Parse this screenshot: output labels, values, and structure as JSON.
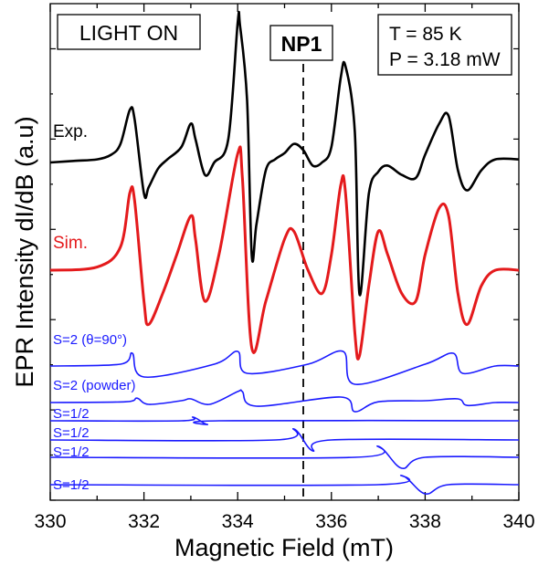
{
  "chart_data": {
    "type": "line",
    "xlabel": "Magnetic Field  (mT)",
    "ylabel": "EPR  Intensity  dI/dB (a.u)",
    "xlim": [
      330,
      340
    ],
    "x_ticks": [
      "330",
      "332",
      "334",
      "336",
      "338",
      "340"
    ],
    "y_ticks_numeric": false,
    "grid": false,
    "legend": "none",
    "annotations": {
      "light": "LIGHT ON",
      "sample": "NP1",
      "temperature": "T = 85 K",
      "power": "P = 3.18 mW"
    },
    "marker_line_x": 335.4,
    "series": [
      {
        "name": "Exp.",
        "color": "#000000",
        "x": [
          330.0,
          330.5,
          331.0,
          331.3,
          331.5,
          331.7,
          331.8,
          332.0,
          332.1,
          332.3,
          332.5,
          332.8,
          333.0,
          333.1,
          333.3,
          333.5,
          333.8,
          334.0,
          334.05,
          334.2,
          334.3,
          334.4,
          334.6,
          334.8,
          335.0,
          335.2,
          335.4,
          335.6,
          335.8,
          336.0,
          336.2,
          336.3,
          336.5,
          336.6,
          336.8,
          337.0,
          337.2,
          337.5,
          337.8,
          338.0,
          338.3,
          338.5,
          338.7,
          338.9,
          339.2,
          339.5,
          340.0
        ],
        "y": [
          0.0,
          0.01,
          0.02,
          0.05,
          0.12,
          0.34,
          0.28,
          -0.2,
          -0.16,
          -0.04,
          0.02,
          0.1,
          0.25,
          0.15,
          -0.08,
          0.0,
          0.15,
          0.9,
          0.88,
          0.4,
          -0.6,
          -0.4,
          -0.05,
          0.02,
          0.06,
          0.12,
          0.08,
          -0.02,
          0.0,
          0.1,
          0.55,
          0.62,
          0.2,
          -0.85,
          -0.2,
          -0.06,
          -0.02,
          -0.08,
          -0.1,
          0.05,
          0.25,
          0.3,
          -0.05,
          -0.18,
          -0.05,
          0.02,
          0.02
        ]
      },
      {
        "name": "Sim.",
        "color": "#e41a1c",
        "x": [
          330.0,
          331.0,
          331.5,
          331.7,
          331.8,
          332.0,
          332.1,
          332.4,
          332.7,
          333.0,
          333.1,
          333.3,
          333.6,
          334.0,
          334.1,
          334.3,
          334.6,
          335.0,
          335.2,
          335.5,
          335.8,
          336.0,
          336.2,
          336.3,
          336.5,
          336.6,
          336.8,
          337.0,
          337.2,
          337.5,
          337.8,
          338.0,
          338.3,
          338.5,
          338.7,
          338.9,
          339.2,
          339.5,
          340.0
        ],
        "y": [
          0.0,
          0.02,
          0.15,
          0.5,
          0.45,
          -0.2,
          -0.35,
          -0.15,
          0.1,
          0.35,
          0.2,
          -0.2,
          0.1,
          0.75,
          0.6,
          -0.5,
          -0.2,
          0.2,
          0.25,
          0.0,
          -0.15,
          0.1,
          0.55,
          0.5,
          -0.4,
          -0.55,
          -0.1,
          0.25,
          0.1,
          -0.15,
          -0.2,
          0.1,
          0.4,
          0.35,
          -0.15,
          -0.35,
          -0.1,
          0.0,
          0.0
        ]
      },
      {
        "name": "S=2 (θ=90°)",
        "color": "#1a1aff",
        "x": [
          330.0,
          331.5,
          331.75,
          332.0,
          333.5,
          334.0,
          334.2,
          335.5,
          336.25,
          336.5,
          338.0,
          338.6,
          338.8,
          339.5,
          340.0
        ],
        "y": [
          0.0,
          0.05,
          0.35,
          -0.3,
          0.05,
          0.4,
          -0.2,
          0.05,
          0.4,
          -0.5,
          0.05,
          0.35,
          -0.2,
          0.0,
          0.0
        ]
      },
      {
        "name": "S=2 (powder)",
        "color": "#1a1aff",
        "x": [
          330.0,
          331.6,
          331.85,
          332.1,
          332.8,
          333.0,
          333.4,
          334.0,
          334.1,
          334.4,
          336.2,
          336.5,
          337.0,
          338.0,
          338.7,
          338.9,
          339.5,
          340.0
        ],
        "y": [
          0.0,
          0.02,
          0.12,
          -0.05,
          0.05,
          0.1,
          -0.05,
          0.3,
          0.3,
          -0.1,
          0.15,
          -0.25,
          0.02,
          0.05,
          0.1,
          -0.08,
          0.0,
          0.0
        ]
      },
      {
        "name": "S=1/2",
        "color": "#1a1aff",
        "x": [
          330.0,
          332.8,
          333.05,
          333.35,
          333.6,
          340.0
        ],
        "y": [
          0.0,
          0.0,
          0.25,
          -0.25,
          0.0,
          0.0
        ]
      },
      {
        "name": "S=1/2",
        "color": "#1a1aff",
        "x": [
          330.0,
          334.8,
          335.2,
          335.6,
          336.0,
          340.0
        ],
        "y": [
          0.0,
          0.0,
          0.6,
          -0.6,
          0.0,
          0.0
        ]
      },
      {
        "name": "S=1/2",
        "color": "#1a1aff",
        "x": [
          330.0,
          336.5,
          337.0,
          337.5,
          338.0,
          340.0
        ],
        "y": [
          0.0,
          0.0,
          0.6,
          -0.6,
          0.0,
          0.0
        ]
      },
      {
        "name": "S=1/2",
        "color": "#1a1aff",
        "x": [
          330.0,
          337.0,
          337.5,
          338.0,
          338.5,
          340.0
        ],
        "y": [
          0.0,
          0.0,
          0.5,
          -0.5,
          0.0,
          0.0
        ]
      }
    ]
  }
}
